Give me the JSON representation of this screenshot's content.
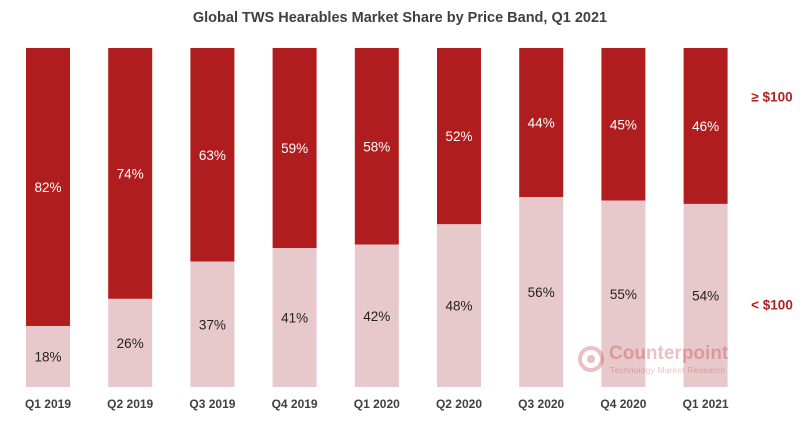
{
  "chart_data": {
    "type": "bar",
    "stacked": true,
    "title": "Global TWS Hearables Market Share by Price Band, Q1 2021",
    "categories": [
      "Q1 2019",
      "Q2 2019",
      "Q3 2019",
      "Q4 2019",
      "Q1 2020",
      "Q2 2020",
      "Q3 2020",
      "Q4 2020",
      "Q1 2021"
    ],
    "series": [
      {
        "name": "< $100",
        "values": [
          18,
          26,
          37,
          41,
          42,
          48,
          56,
          55,
          54
        ],
        "labels": [
          "18%",
          "26%",
          "37%",
          "41%",
          "42%",
          "48%",
          "56%",
          "55%",
          "54%"
        ],
        "color": "#e8c9cb"
      },
      {
        "name": "≥ $100",
        "values": [
          82,
          74,
          63,
          59,
          58,
          52,
          44,
          45,
          46
        ],
        "labels": [
          "82%",
          "74%",
          "63%",
          "59%",
          "58%",
          "52%",
          "44%",
          "45%",
          "46%"
        ],
        "color": "#b01d1f"
      }
    ],
    "ylim": [
      0,
      100
    ],
    "xlabel": "",
    "ylabel": "",
    "grid": false,
    "legend_position": "right"
  },
  "watermark": {
    "brand": "Counterpoint",
    "tagline": "Technology Market Research"
  },
  "colors": {
    "premium": "#b01d1f",
    "budget": "#e8c9cb",
    "label_on_dark": "#ffffff",
    "label_on_light": "#222222",
    "legend_text": "#b52020"
  }
}
